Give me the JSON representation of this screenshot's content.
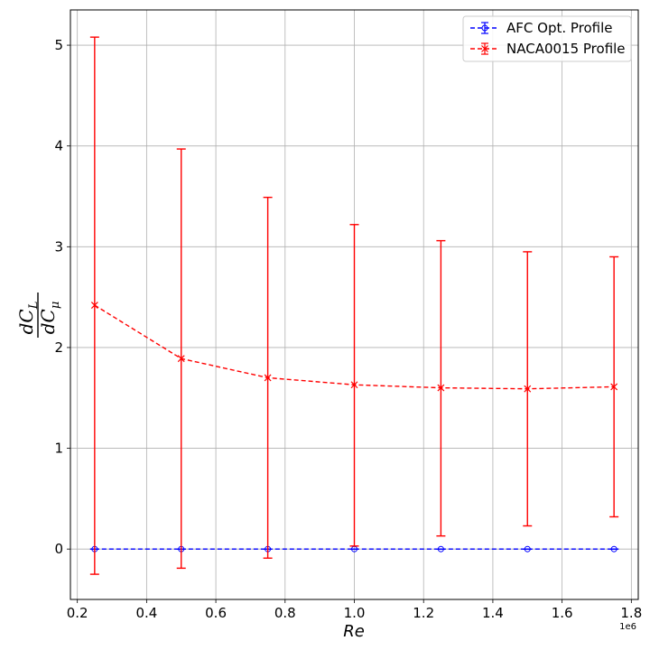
{
  "chart_data": {
    "type": "line",
    "xlabel": "Re",
    "x_offset_label": "1e6",
    "ylabel": {
      "numerator": "dC",
      "numerator_sub": "L",
      "denominator": "dC",
      "denominator_sub": "μ"
    },
    "xlim": [
      0.18,
      1.82
    ],
    "ylim": [
      -0.5,
      5.35
    ],
    "x_ticks": [
      0.2,
      0.4,
      0.6,
      0.8,
      1.0,
      1.2,
      1.4,
      1.6,
      1.8
    ],
    "x_tick_labels": [
      "0.2",
      "0.4",
      "0.6",
      "0.8",
      "1.0",
      "1.2",
      "1.4",
      "1.6",
      "1.8"
    ],
    "y_ticks": [
      0,
      1,
      2,
      3,
      4,
      5
    ],
    "y_tick_labels": [
      "0",
      "1",
      "2",
      "3",
      "4",
      "5"
    ],
    "grid": true,
    "legend_position": "top-right",
    "x": [
      0.25,
      0.5,
      0.75,
      1.0,
      1.25,
      1.5,
      1.75
    ],
    "series": [
      {
        "name": "AFC Opt. Profile",
        "color": "#0000ff",
        "marker": "o",
        "linestyle": "dashed",
        "values": [
          0.0,
          0.0,
          0.0,
          0.0,
          0.0,
          0.0,
          0.0
        ],
        "error_lower": [
          0.0,
          0.0,
          0.0,
          0.0,
          0.0,
          0.0,
          0.0
        ],
        "error_upper": [
          0.0,
          0.0,
          0.0,
          0.0,
          0.0,
          0.0,
          0.0
        ]
      },
      {
        "name": "NACA0015 Profile",
        "color": "#ff0000",
        "marker": "x",
        "linestyle": "dashed",
        "values": [
          2.42,
          1.89,
          1.7,
          1.63,
          1.6,
          1.59,
          1.61
        ],
        "error_lower": [
          -0.25,
          -0.19,
          -0.09,
          0.03,
          0.13,
          0.23,
          0.32
        ],
        "error_upper": [
          5.08,
          3.97,
          3.49,
          3.22,
          3.06,
          2.95,
          2.9
        ]
      }
    ]
  }
}
